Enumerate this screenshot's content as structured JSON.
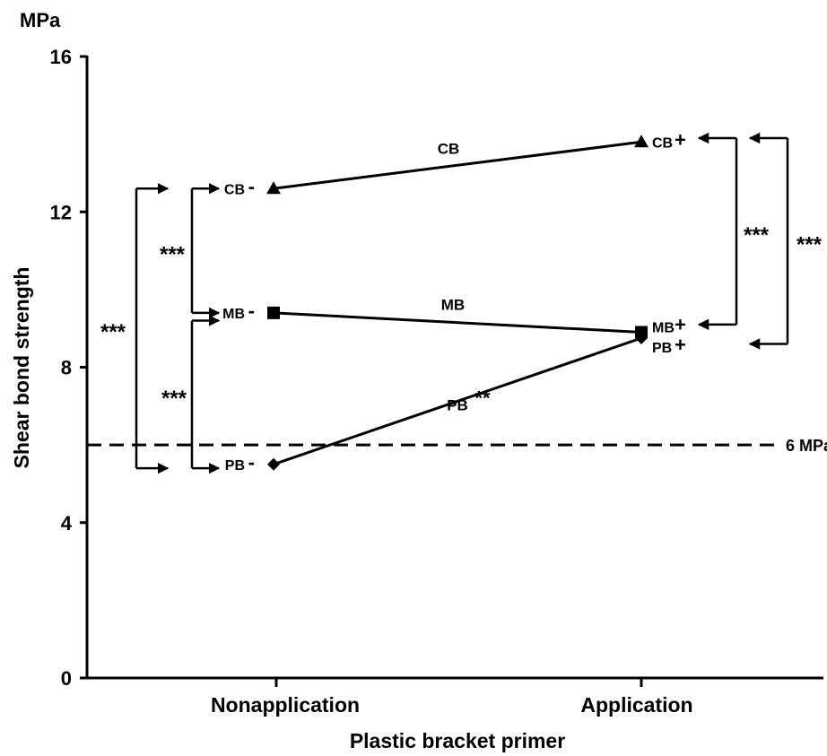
{
  "chart_data": {
    "type": "line",
    "unit_label": "MPa",
    "ylabel": "Shear bond strength",
    "xlabel": "Plastic bracket primer",
    "ylim": [
      0,
      16
    ],
    "yticks": [
      "0",
      "4",
      "8",
      "12",
      "16"
    ],
    "categories": [
      "Nonapplication",
      "Application"
    ],
    "grid": false,
    "series": [
      {
        "name": "CB",
        "marker": "triangle",
        "values": [
          12.6,
          13.8
        ],
        "point_labels": [
          "CB",
          "CB"
        ],
        "signs": [
          "-",
          "+"
        ],
        "significance": ""
      },
      {
        "name": "MB",
        "marker": "square",
        "values": [
          9.4,
          8.9
        ],
        "point_labels": [
          "MB",
          "MB"
        ],
        "signs": [
          "-",
          "+"
        ],
        "significance": ""
      },
      {
        "name": "PB",
        "marker": "diamond",
        "values": [
          5.5,
          8.75
        ],
        "point_labels": [
          "PB",
          "PB"
        ],
        "signs": [
          "-",
          "+"
        ],
        "significance": "**"
      }
    ],
    "reference_line": {
      "value": 6,
      "label": "6 MPa",
      "style": "dashed"
    },
    "brackets": [
      {
        "group": "Nonapplication",
        "from": 12.6,
        "to": 9.4,
        "label": "***"
      },
      {
        "group": "Nonapplication",
        "from": 9.2,
        "to": 5.4,
        "label": "***"
      },
      {
        "group": "Nonapplication",
        "from": 12.6,
        "to": 5.4,
        "label": "***"
      },
      {
        "group": "Application",
        "from": 13.9,
        "to": 9.1,
        "label": "***"
      },
      {
        "group": "Application",
        "from": 13.9,
        "to": 8.6,
        "label": "***"
      }
    ]
  }
}
